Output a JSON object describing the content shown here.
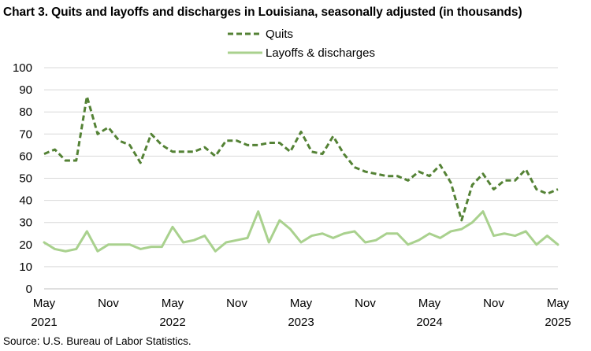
{
  "title": "Chart 3. Quits and layoffs and discharges in Louisiana, seasonally adjusted (in thousands)",
  "source": "Source: U.S. Bureau of Labor Statistics.",
  "chart_data": {
    "type": "line",
    "title": "Chart 3. Quits and layoffs and discharges in Louisiana, seasonally adjusted (in thousands)",
    "ylim": [
      0,
      100
    ],
    "yticks": [
      0,
      10,
      20,
      30,
      40,
      50,
      60,
      70,
      80,
      90,
      100
    ],
    "grid": true,
    "legend": "top-center",
    "x": [
      "2021-05",
      "2021-06",
      "2021-07",
      "2021-08",
      "2021-09",
      "2021-10",
      "2021-11",
      "2021-12",
      "2022-01",
      "2022-02",
      "2022-03",
      "2022-04",
      "2022-05",
      "2022-06",
      "2022-07",
      "2022-08",
      "2022-09",
      "2022-10",
      "2022-11",
      "2022-12",
      "2023-01",
      "2023-02",
      "2023-03",
      "2023-04",
      "2023-05",
      "2023-06",
      "2023-07",
      "2023-08",
      "2023-09",
      "2023-10",
      "2023-11",
      "2023-12",
      "2024-01",
      "2024-02",
      "2024-03",
      "2024-04",
      "2024-05",
      "2024-06",
      "2024-07",
      "2024-08",
      "2024-09",
      "2024-10",
      "2024-11",
      "2024-12",
      "2025-01",
      "2025-02",
      "2025-03",
      "2025-04",
      "2025-05"
    ],
    "xtick_labels": [
      {
        "month": "May",
        "year": "2021"
      },
      {
        "month": "Nov",
        "year": ""
      },
      {
        "month": "May",
        "year": "2022"
      },
      {
        "month": "Nov",
        "year": ""
      },
      {
        "month": "May",
        "year": "2023"
      },
      {
        "month": "Nov",
        "year": ""
      },
      {
        "month": "May",
        "year": "2024"
      },
      {
        "month": "Nov",
        "year": ""
      },
      {
        "month": "May",
        "year": "2025"
      }
    ],
    "series": [
      {
        "name": "Quits",
        "color": "#548235",
        "style": "dashed",
        "values": [
          61,
          63,
          58,
          58,
          87,
          70,
          73,
          67,
          65,
          57,
          70,
          65,
          62,
          62,
          62,
          64,
          60,
          67,
          67,
          65,
          65,
          66,
          66,
          62,
          71,
          62,
          61,
          69,
          61,
          55,
          53,
          52,
          51,
          51,
          49,
          53,
          51,
          56,
          48,
          31,
          47,
          52,
          45,
          49,
          49,
          54,
          45,
          43,
          45
        ]
      },
      {
        "name": "Layoffs & discharges",
        "color": "#a9d18e",
        "style": "solid",
        "values": [
          21,
          18,
          17,
          18,
          26,
          17,
          20,
          20,
          20,
          18,
          19,
          19,
          28,
          21,
          22,
          24,
          17,
          21,
          22,
          23,
          35,
          21,
          31,
          27,
          21,
          24,
          25,
          23,
          25,
          26,
          21,
          22,
          25,
          25,
          20,
          22,
          25,
          23,
          26,
          27,
          30,
          35,
          24,
          25,
          24,
          26,
          20,
          24,
          20
        ]
      }
    ]
  }
}
